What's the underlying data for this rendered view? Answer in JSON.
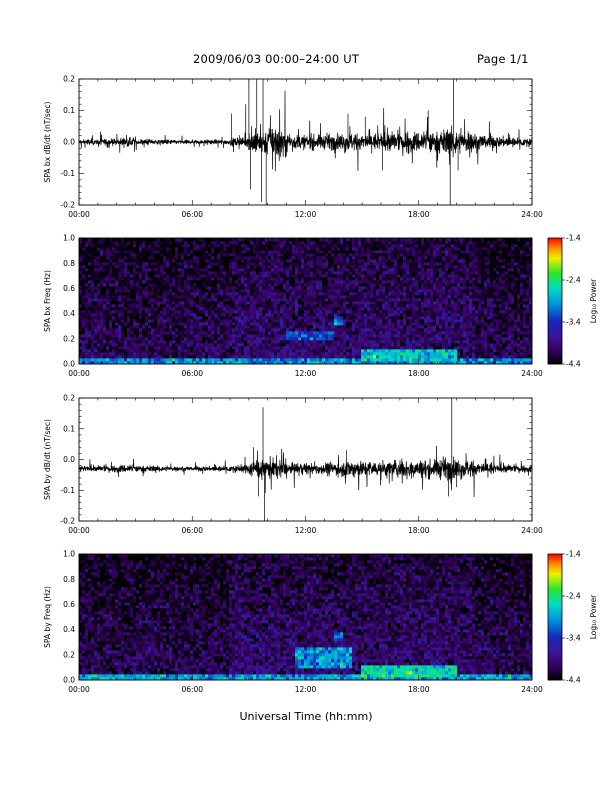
{
  "header": {
    "title": "2009/06/03   00:00–24:00 UT",
    "page": "Page 1/1"
  },
  "chart_data": [
    {
      "type": "line",
      "ylabel": "SPA bx dB/dt (nT/sec)",
      "xlim": [
        "00:00",
        "24:00"
      ],
      "ylim": [
        -0.2,
        0.2
      ],
      "x_ticks": [
        "00:00",
        "06:00",
        "12:00",
        "18:00",
        "24:00"
      ],
      "y_ticks": [
        "-0.2",
        "-0.1",
        "0.0",
        "0.1",
        "0.2"
      ],
      "y_tick_values": [
        -0.2,
        -0.1,
        0.0,
        0.1,
        0.2
      ],
      "color": "#000000",
      "baseline": 0.0,
      "noise_amplitude_by_hour": [
        0.008,
        0.009,
        0.012,
        0.009,
        0.007,
        0.006,
        0.006,
        0.007,
        0.012,
        0.035,
        0.045,
        0.02,
        0.02,
        0.022,
        0.025,
        0.025,
        0.028,
        0.03,
        0.03,
        0.035,
        0.03,
        0.022,
        0.015,
        0.012
      ],
      "spikes": [
        {
          "x": "08:05",
          "value": 0.09
        },
        {
          "x": "08:50",
          "value": 0.12
        },
        {
          "x": "09:00",
          "value": 0.21
        },
        {
          "x": "09:05",
          "value": -0.15
        },
        {
          "x": "09:25",
          "value": 0.21
        },
        {
          "x": "09:40",
          "value": -0.19
        },
        {
          "x": "09:45",
          "value": 0.21
        },
        {
          "x": "09:55",
          "value": -0.21
        },
        {
          "x": "14:15",
          "value": 0.09
        },
        {
          "x": "15:10",
          "value": 0.08
        },
        {
          "x": "16:05",
          "value": -0.09
        },
        {
          "x": "18:30",
          "value": 0.1
        },
        {
          "x": "19:40",
          "value": -0.21
        },
        {
          "x": "19:50",
          "value": 0.21
        },
        {
          "x": "20:05",
          "value": -0.09
        }
      ]
    },
    {
      "type": "heatmap",
      "ylabel": "SPA bx Freq (Hz)",
      "xlim": [
        "00:00",
        "24:00"
      ],
      "ylim": [
        0.0,
        1.0
      ],
      "x_ticks": [
        "00:00",
        "06:00",
        "12:00",
        "18:00",
        "24:00"
      ],
      "y_ticks": [
        "0.0",
        "0.2",
        "0.4",
        "0.6",
        "0.8",
        "1.0"
      ],
      "y_tick_values": [
        0.0,
        0.2,
        0.4,
        0.6,
        0.8,
        1.0
      ],
      "colorbar": {
        "label": "Log₁₀ Power",
        "ticks": [
          "-1.4",
          "-2.4",
          "-3.4",
          "-4.4"
        ],
        "tick_values": [
          -1.4,
          -2.4,
          -3.4,
          -4.4
        ],
        "range": [
          -4.4,
          -1.4
        ]
      },
      "features": [
        {
          "name": "low-frequency band",
          "freq": [
            0.0,
            0.05
          ],
          "level": -3.0
        },
        {
          "name": "emission",
          "time": [
            "11:00",
            "13:30"
          ],
          "freq": [
            0.18,
            0.27
          ],
          "level": -3.3
        },
        {
          "name": "emission",
          "time": [
            "13:30",
            "14:00"
          ],
          "freq": [
            0.32,
            0.37
          ],
          "level": -3.1
        },
        {
          "name": "emission",
          "time": [
            "15:00",
            "20:00"
          ],
          "freq": [
            0.03,
            0.12
          ],
          "level": -2.7
        }
      ]
    },
    {
      "type": "line",
      "ylabel": "SPA by dB/dt (nT/sec)",
      "xlim": [
        "00:00",
        "24:00"
      ],
      "ylim": [
        -0.2,
        0.2
      ],
      "x_ticks": [
        "00:00",
        "06:00",
        "12:00",
        "18:00",
        "24:00"
      ],
      "y_ticks": [
        "-0.2",
        "-0.1",
        "0.0",
        "0.1",
        "0.2"
      ],
      "y_tick_values": [
        -0.2,
        -0.1,
        0.0,
        0.1,
        0.2
      ],
      "color": "#000000",
      "baseline": -0.03,
      "noise_amplitude_by_hour": [
        0.008,
        0.009,
        0.012,
        0.009,
        0.007,
        0.006,
        0.007,
        0.008,
        0.01,
        0.025,
        0.03,
        0.015,
        0.015,
        0.02,
        0.025,
        0.022,
        0.025,
        0.025,
        0.025,
        0.03,
        0.025,
        0.02,
        0.012,
        0.01
      ],
      "spikes": [
        {
          "x": "09:15",
          "value": 0.04
        },
        {
          "x": "09:30",
          "value": -0.12
        },
        {
          "x": "09:45",
          "value": 0.17
        },
        {
          "x": "09:50",
          "value": -0.2
        },
        {
          "x": "14:10",
          "value": 0.03
        },
        {
          "x": "19:35",
          "value": -0.12
        },
        {
          "x": "19:45",
          "value": 0.2
        },
        {
          "x": "20:00",
          "value": -0.09
        }
      ]
    },
    {
      "type": "heatmap",
      "ylabel": "SPA by Freq (Hz)",
      "xlim": [
        "00:00",
        "24:00"
      ],
      "ylim": [
        0.0,
        1.0
      ],
      "x_ticks": [
        "00:00",
        "06:00",
        "12:00",
        "18:00",
        "24:00"
      ],
      "y_ticks": [
        "0.0",
        "0.2",
        "0.4",
        "0.6",
        "0.8",
        "1.0"
      ],
      "y_tick_values": [
        0.0,
        0.2,
        0.4,
        0.6,
        0.8,
        1.0
      ],
      "colorbar": {
        "label": "Log₁₀ Power",
        "ticks": [
          "-1.4",
          "-2.4",
          "-3.4",
          "-4.4"
        ],
        "tick_values": [
          -1.4,
          -2.4,
          -3.4,
          -4.4
        ],
        "range": [
          -4.4,
          -1.4
        ]
      },
      "features": [
        {
          "name": "low-frequency band",
          "freq": [
            0.0,
            0.05
          ],
          "level": -2.9
        },
        {
          "name": "emission",
          "time": [
            "11:30",
            "14:30"
          ],
          "freq": [
            0.1,
            0.27
          ],
          "level": -3.0
        },
        {
          "name": "emission",
          "time": [
            "13:30",
            "14:00"
          ],
          "freq": [
            0.32,
            0.37
          ],
          "level": -3.1
        },
        {
          "name": "emission",
          "time": [
            "15:00",
            "20:00"
          ],
          "freq": [
            0.02,
            0.12
          ],
          "level": -2.6
        }
      ]
    }
  ],
  "xlabel": "Universal Time (hh:mm)"
}
